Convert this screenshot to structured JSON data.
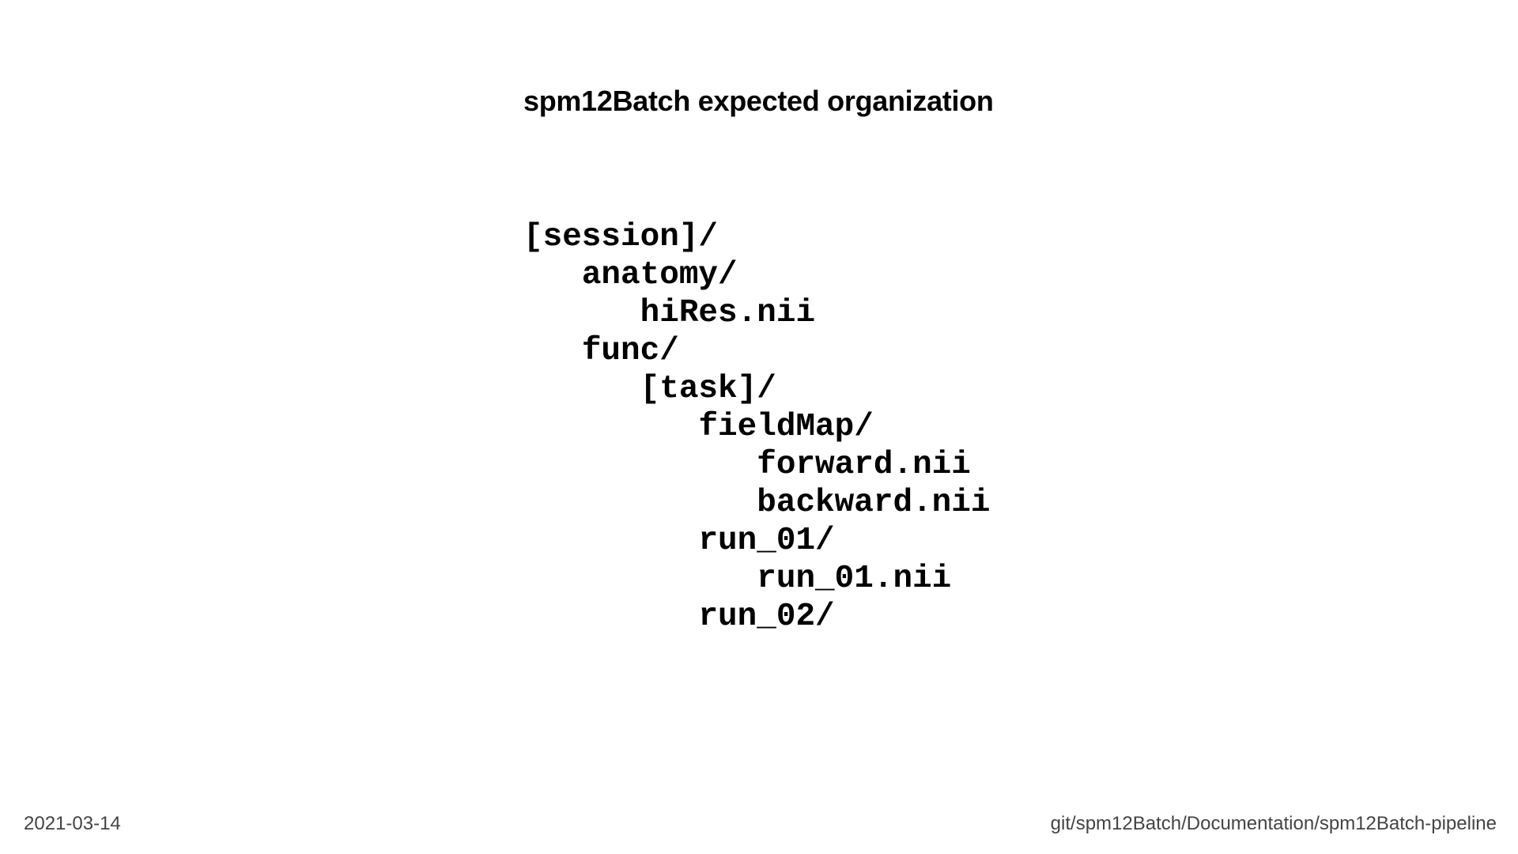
{
  "slide": {
    "title": "spm12Batch expected organization"
  },
  "tree": {
    "items": [
      {
        "text": "[session]/",
        "level": 0
      },
      {
        "text": "anatomy/",
        "level": 1
      },
      {
        "text": "hiRes.nii",
        "level": 2
      },
      {
        "text": "func/",
        "level": 1
      },
      {
        "text": "[task]/",
        "level": 2
      },
      {
        "text": "fieldMap/",
        "level": 3
      },
      {
        "text": "forward.nii",
        "level": 4
      },
      {
        "text": "backward.nii",
        "level": 4
      },
      {
        "text": "run_01/",
        "level": 3
      },
      {
        "text": "run_01.nii",
        "level": 4
      },
      {
        "text": "run_02/",
        "level": 3
      }
    ]
  },
  "footer": {
    "date": "2021-03-14",
    "path": "git/spm12Batch/Documentation/spm12Batch-pipeline"
  }
}
